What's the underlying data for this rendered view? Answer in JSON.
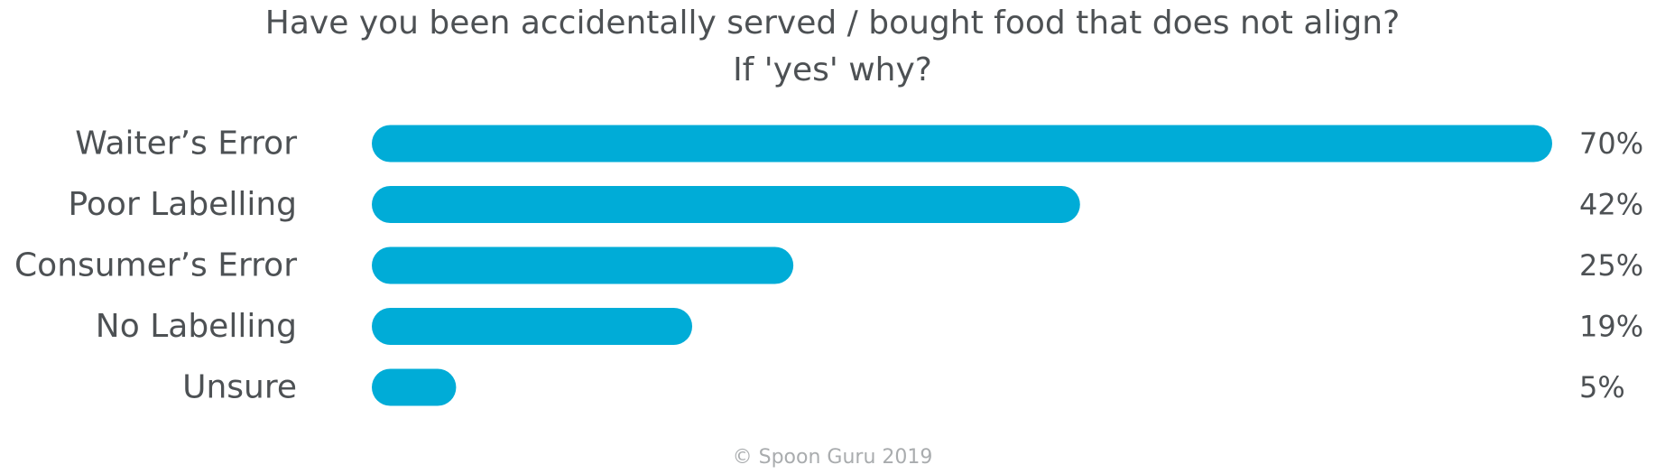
{
  "chart_data": {
    "type": "bar",
    "orientation": "horizontal",
    "title_line1": "Have you been accidentally served / bought food that does not align?",
    "title_line2": "If 'yes' why?",
    "categories": [
      "Waiter’s Error",
      "Poor Labelling",
      "Consumer’s Error",
      "No Labelling",
      "Unsure"
    ],
    "values": [
      70,
      42,
      25,
      19,
      5
    ],
    "value_labels": [
      "70%",
      "42%",
      "25%",
      "19%",
      "5%"
    ],
    "unit": "%",
    "xlim": [
      0,
      70
    ],
    "grid": false,
    "legend": "none",
    "bar_color": "#00acd7"
  },
  "footer": {
    "copyright": "© Spoon Guru 2019"
  }
}
